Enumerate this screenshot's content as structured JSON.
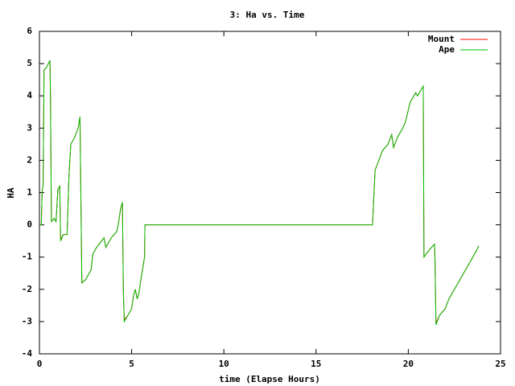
{
  "chart_data": {
    "type": "line",
    "title": "3: Ha vs. Time",
    "x_label": "time (Elapse Hours)",
    "y_label": "HA",
    "x": [
      0,
      0.1,
      0.15,
      0.2,
      0.25,
      0.4,
      0.57,
      0.6,
      0.65,
      0.8,
      0.9,
      1.0,
      1.1,
      1.15,
      1.3,
      1.5,
      1.6,
      1.7,
      1.9,
      2.1,
      2.2,
      2.3,
      2.5,
      2.8,
      2.9,
      3.1,
      3.5,
      3.6,
      3.9,
      4.2,
      4.3,
      4.4,
      4.5,
      4.55,
      4.6,
      4.8,
      5.0,
      5.1,
      5.2,
      5.3,
      5.4,
      5.5,
      5.7,
      5.72,
      18.06,
      18.2,
      18.4,
      18.6,
      18.9,
      19.1,
      19.2,
      19.4,
      19.7,
      19.85,
      20.1,
      20.4,
      20.5,
      20.81,
      20.85,
      21.1,
      21.42,
      21.45,
      21.5,
      21.7,
      22.0,
      22.2,
      22.6,
      23.0,
      23.3,
      23.7,
      23.82
    ],
    "series": [
      {
        "name": "Mount",
        "color": "#ff0000",
        "values": [
          0,
          0,
          1.1,
          1.2,
          4.8,
          4.9,
          5.1,
          3.9,
          0.1,
          0.2,
          0.1,
          1.1,
          1.2,
          -0.45,
          -0.3,
          -0.3,
          1.5,
          2.5,
          2.7,
          3.0,
          3.35,
          -1.8,
          -1.7,
          -1.4,
          -0.9,
          -0.7,
          -0.4,
          -0.7,
          -0.4,
          -0.2,
          0.1,
          0.5,
          0.7,
          -2.1,
          -2.95,
          -2.8,
          -2.6,
          -2.2,
          -2.0,
          -2.3,
          -2.1,
          -1.7,
          -1.0,
          0,
          0,
          1.7,
          2.0,
          2.3,
          2.5,
          2.8,
          2.4,
          2.7,
          3.0,
          3.2,
          3.8,
          4.1,
          4.0,
          4.3,
          -1.0,
          -0.8,
          -0.6,
          -1.1,
          -3.05,
          -2.8,
          -2.6,
          -2.3,
          -1.9,
          -1.5,
          -1.2,
          -0.8,
          -0.65
        ]
      },
      {
        "name": "Ape",
        "color": "#00c000",
        "values": [
          0,
          0,
          1.1,
          1.2,
          4.8,
          4.9,
          5.1,
          3.9,
          0.1,
          0.2,
          0.1,
          1.1,
          1.2,
          -0.5,
          -0.3,
          -0.3,
          1.5,
          2.5,
          2.7,
          3.0,
          3.35,
          -1.8,
          -1.7,
          -1.4,
          -0.9,
          -0.7,
          -0.4,
          -0.7,
          -0.4,
          -0.2,
          0.1,
          0.5,
          0.7,
          -2.0,
          -3.0,
          -2.8,
          -2.6,
          -2.2,
          -2.0,
          -2.3,
          -2.1,
          -1.7,
          -1.0,
          0,
          0,
          1.7,
          2.0,
          2.3,
          2.5,
          2.8,
          2.4,
          2.7,
          3.0,
          3.2,
          3.8,
          4.1,
          4.0,
          4.3,
          -1.0,
          -0.8,
          -0.6,
          -1.2,
          -3.1,
          -2.8,
          -2.6,
          -2.3,
          -1.9,
          -1.5,
          -1.2,
          -0.8,
          -0.65
        ]
      }
    ],
    "xlim": [
      0,
      25
    ],
    "xticks": [
      0,
      5,
      10,
      15,
      20,
      25
    ],
    "ylim": [
      -4,
      6
    ],
    "yticks": [
      -4,
      -3,
      -2,
      -1,
      0,
      1,
      2,
      3,
      4,
      5,
      6
    ],
    "grid": false,
    "legend": "top-right"
  }
}
